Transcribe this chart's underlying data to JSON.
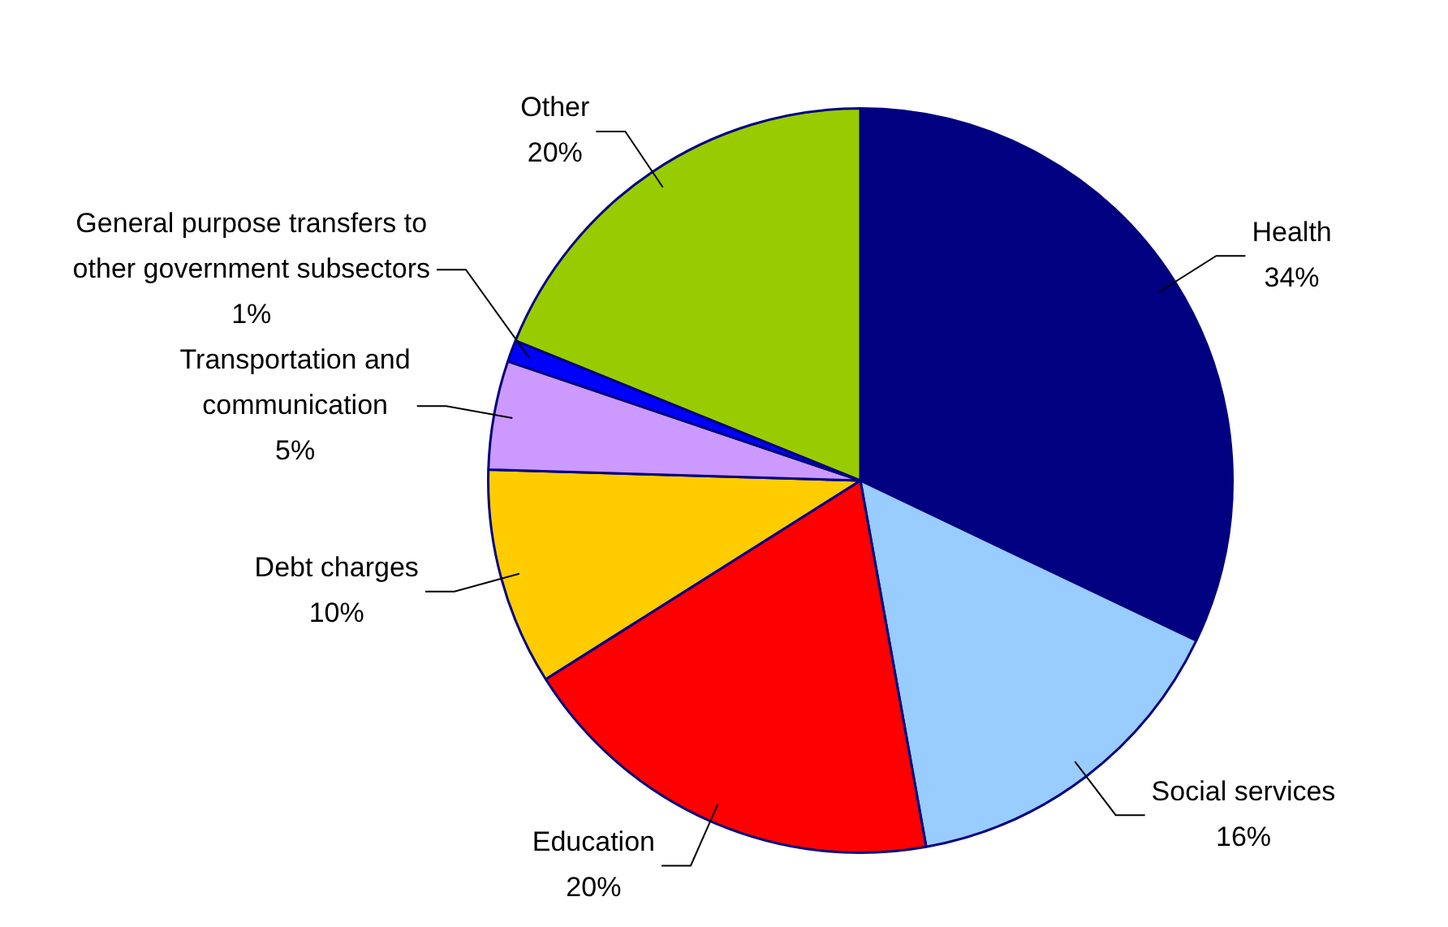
{
  "chart_data": {
    "type": "pie",
    "categories": [
      "Health",
      "Social services",
      "Education",
      "Debt charges",
      "Transportation and communication",
      "General purpose transfers to other government subsectors",
      "Other"
    ],
    "values": [
      34,
      16,
      20,
      10,
      5,
      1,
      20
    ],
    "value_labels": [
      "34%",
      "16%",
      "20%",
      "10%",
      "5%",
      "1%",
      "20%"
    ],
    "colors": [
      "#000080",
      "#99ccff",
      "#ff0000",
      "#ffcc00",
      "#cc99ff",
      "#0000ff",
      "#99cc00"
    ],
    "legend": false
  }
}
